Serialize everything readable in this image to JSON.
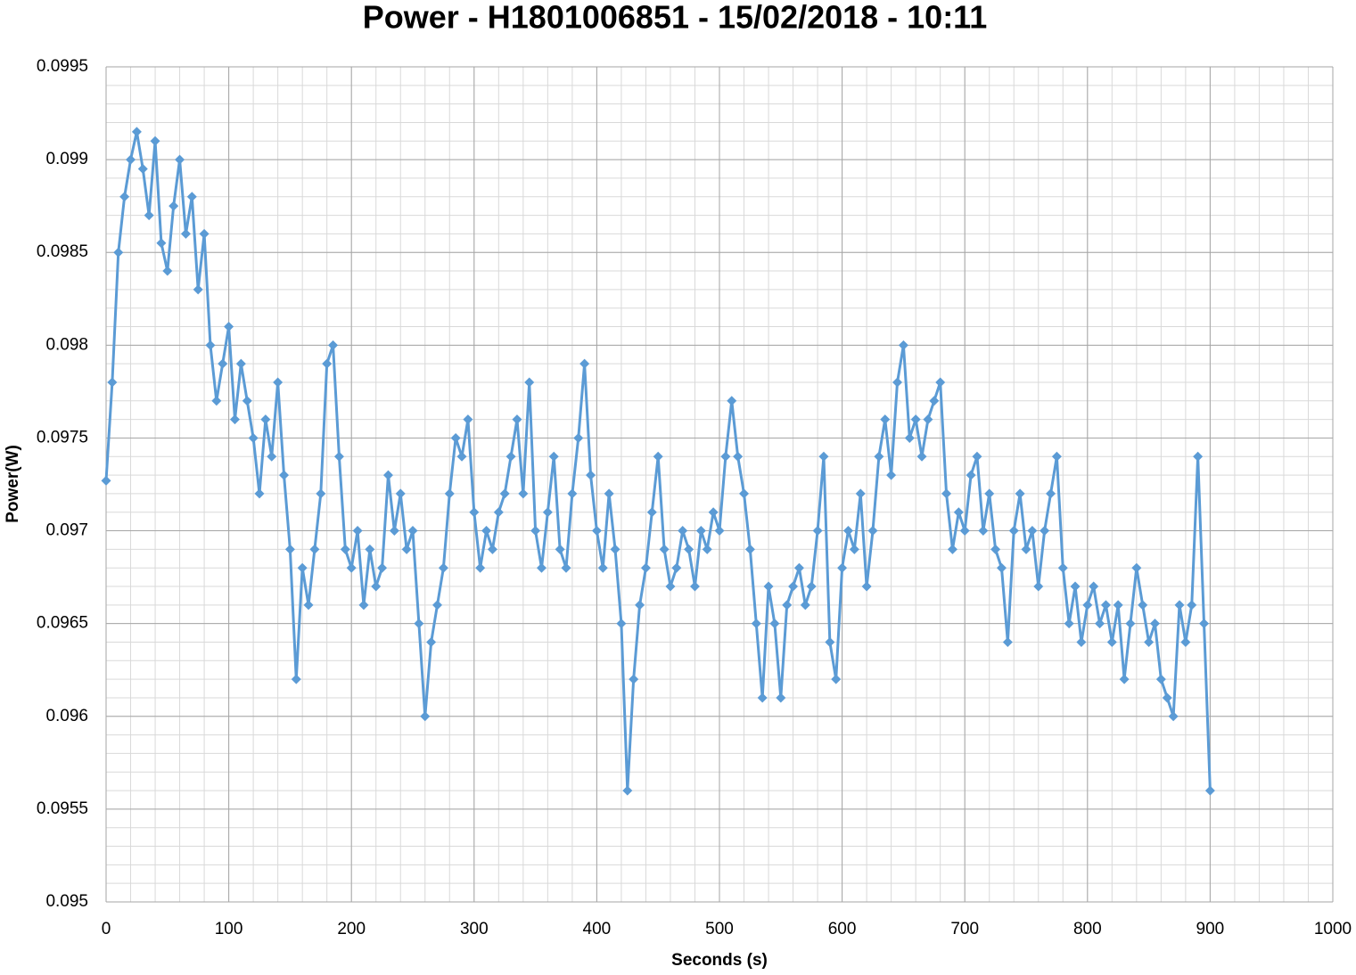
{
  "chart_data": {
    "type": "line",
    "title": "Power - H1801006851 - 15/02/2018 - 10:11",
    "x_label": "Seconds (s)",
    "y_label": "Power(W)",
    "xlim": [
      0,
      1000
    ],
    "xticks": [
      0,
      100,
      200,
      300,
      400,
      500,
      600,
      700,
      800,
      900,
      1000
    ],
    "ylim": [
      0.095,
      0.0995
    ],
    "yticks": [
      0.095,
      0.0955,
      0.096,
      0.0965,
      0.097,
      0.0975,
      0.098,
      0.0985,
      0.099,
      0.0995
    ],
    "grid": true,
    "x_minor_step": 20,
    "y_minor_step": 0.0001,
    "color": "#5b9bd5",
    "marker": "diamond",
    "x": [
      0,
      5,
      10,
      15,
      20,
      25,
      30,
      35,
      40,
      45,
      50,
      55,
      60,
      65,
      70,
      75,
      80,
      85,
      90,
      95,
      100,
      105,
      110,
      115,
      120,
      125,
      130,
      135,
      140,
      145,
      150,
      155,
      160,
      165,
      170,
      175,
      180,
      185,
      190,
      195,
      200,
      205,
      210,
      215,
      220,
      225,
      230,
      235,
      240,
      245,
      250,
      255,
      260,
      265,
      270,
      275,
      280,
      285,
      290,
      295,
      300,
      305,
      310,
      315,
      320,
      325,
      330,
      335,
      340,
      345,
      350,
      355,
      360,
      365,
      370,
      375,
      380,
      385,
      390,
      395,
      400,
      405,
      410,
      415,
      420,
      425,
      430,
      435,
      440,
      445,
      450,
      455,
      460,
      465,
      470,
      475,
      480,
      485,
      490,
      495,
      500,
      505,
      510,
      515,
      520,
      525,
      530,
      535,
      540,
      545,
      550,
      555,
      560,
      565,
      570,
      575,
      580,
      585,
      590,
      595,
      600,
      605,
      610,
      615,
      620,
      625,
      630,
      635,
      640,
      645,
      650,
      655,
      660,
      665,
      670,
      675,
      680,
      685,
      690,
      695,
      700,
      705,
      710,
      715,
      720,
      725,
      730,
      735,
      740,
      745,
      750,
      755,
      760,
      765,
      770,
      775,
      780,
      785,
      790,
      795,
      800,
      805,
      810,
      815,
      820,
      825,
      830,
      835,
      840,
      845,
      850,
      855,
      860,
      865,
      870,
      875,
      880,
      885,
      890,
      895,
      900
    ],
    "values": [
      0.09727,
      0.0978,
      0.0985,
      0.0988,
      0.099,
      0.09915,
      0.09895,
      0.0987,
      0.0991,
      0.09855,
      0.0984,
      0.09875,
      0.099,
      0.0986,
      0.0988,
      0.0983,
      0.0986,
      0.098,
      0.0977,
      0.0979,
      0.0981,
      0.0976,
      0.0979,
      0.0977,
      0.0975,
      0.0972,
      0.0976,
      0.0974,
      0.0978,
      0.0973,
      0.0969,
      0.0962,
      0.0968,
      0.0966,
      0.0969,
      0.0972,
      0.0979,
      0.098,
      0.0974,
      0.0969,
      0.0968,
      0.097,
      0.0966,
      0.0969,
      0.0967,
      0.0968,
      0.0973,
      0.097,
      0.0972,
      0.0969,
      0.097,
      0.0965,
      0.096,
      0.0964,
      0.0966,
      0.0968,
      0.0972,
      0.0975,
      0.0974,
      0.0976,
      0.0971,
      0.0968,
      0.097,
      0.0969,
      0.0971,
      0.0972,
      0.0974,
      0.0976,
      0.0972,
      0.0978,
      0.097,
      0.0968,
      0.0971,
      0.0974,
      0.0969,
      0.0968,
      0.0972,
      0.0975,
      0.0979,
      0.0973,
      0.097,
      0.0968,
      0.0972,
      0.0969,
      0.0965,
      0.0956,
      0.0962,
      0.0966,
      0.0968,
      0.0971,
      0.0974,
      0.0969,
      0.0967,
      0.0968,
      0.097,
      0.0969,
      0.0967,
      0.097,
      0.0969,
      0.0971,
      0.097,
      0.0974,
      0.0977,
      0.0974,
      0.0972,
      0.0969,
      0.0965,
      0.0961,
      0.0967,
      0.0965,
      0.0961,
      0.0966,
      0.0967,
      0.0968,
      0.0966,
      0.0967,
      0.097,
      0.0974,
      0.0964,
      0.0962,
      0.0968,
      0.097,
      0.0969,
      0.0972,
      0.0967,
      0.097,
      0.0974,
      0.0976,
      0.0973,
      0.0978,
      0.098,
      0.0975,
      0.0976,
      0.0974,
      0.0976,
      0.0977,
      0.0978,
      0.0972,
      0.0969,
      0.0971,
      0.097,
      0.0973,
      0.0974,
      0.097,
      0.0972,
      0.0969,
      0.0968,
      0.0964,
      0.097,
      0.0972,
      0.0969,
      0.097,
      0.0967,
      0.097,
      0.0972,
      0.0974,
      0.0968,
      0.0965,
      0.0967,
      0.0964,
      0.0966,
      0.0967,
      0.0965,
      0.0966,
      0.0964,
      0.0966,
      0.0962,
      0.0965,
      0.0968,
      0.0966,
      0.0964,
      0.0965,
      0.0962,
      0.0961,
      0.096,
      0.0966,
      0.0964,
      0.0966,
      0.0974,
      0.0965,
      0.0956
    ]
  }
}
